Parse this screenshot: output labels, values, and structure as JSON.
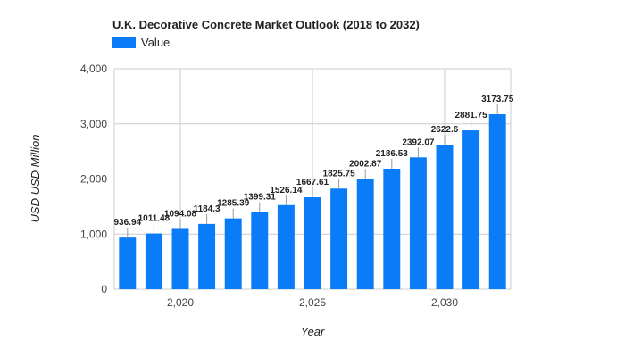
{
  "chart_data": {
    "type": "bar",
    "title": "U.K.  Decorative Concrete Market Outlook (2018 to 2032)",
    "xlabel": "Year",
    "ylabel": "USD USD Million",
    "legend": {
      "position": "top-left",
      "entries": [
        "Value"
      ]
    },
    "series": [
      {
        "name": "Value",
        "color": "#0a7cf7",
        "x": [
          2018,
          2019,
          2020,
          2021,
          2022,
          2023,
          2024,
          2025,
          2026,
          2027,
          2028,
          2029,
          2030,
          2031,
          2032
        ],
        "values": [
          936.94,
          1011.48,
          1094.08,
          1184.3,
          1285.39,
          1399.31,
          1526.14,
          1667.61,
          1825.75,
          2002.87,
          2186.53,
          2392.07,
          2622.6,
          2881.75,
          3173.75
        ],
        "labels": [
          "936.94",
          "1011.48",
          "1094.08",
          "1184.3",
          "1285.39",
          "1399.31",
          "1526.14",
          "1667.61",
          "1825.75",
          "2002.87",
          "2186.53",
          "2392.07",
          "2622.6",
          "2881.75",
          "3173.75"
        ]
      }
    ],
    "ylim": [
      0,
      4000
    ],
    "xlim": [
      2017.5,
      2032.5
    ],
    "y_ticks": [
      0,
      1000,
      2000,
      3000,
      4000
    ],
    "y_tick_labels": [
      "0",
      "1,000",
      "2,000",
      "3,000",
      "4,000"
    ],
    "x_ticks": [
      2020,
      2025,
      2030
    ],
    "x_tick_labels": [
      "2,020",
      "2,025",
      "2,030"
    ],
    "grid": true
  }
}
